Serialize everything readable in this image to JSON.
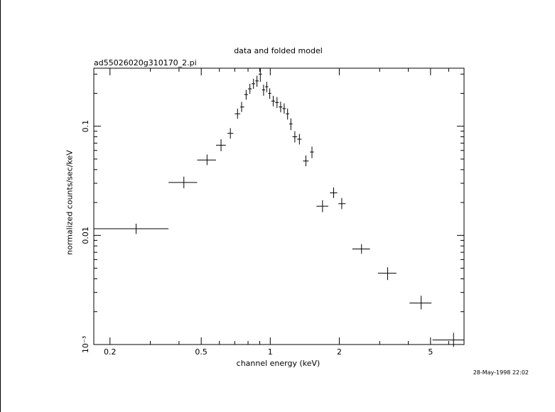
{
  "window": {
    "left_border": true
  },
  "chart_data": {
    "type": "scatter",
    "title": "data and folded model",
    "subtitle": "ad55026020g310170_2.pi",
    "xlabel": "channel energy (keV)",
    "ylabel": "normalized counts/sec/keV",
    "xscale": "log",
    "yscale": "log",
    "xlim": [
      0.17,
      7.0
    ],
    "ylim": [
      0.001,
      0.34
    ],
    "x_ticks": [
      {
        "value": 0.2,
        "label": "0.2"
      },
      {
        "value": 0.5,
        "label": "0.5"
      },
      {
        "value": 1,
        "label": "1"
      },
      {
        "value": 2,
        "label": "2"
      },
      {
        "value": 5,
        "label": "5"
      }
    ],
    "y_ticks": [
      {
        "value": 0.1,
        "label": "0.1"
      },
      {
        "value": 0.01,
        "label": "0.01"
      },
      {
        "value": 0.001,
        "label": "10⁻³"
      }
    ],
    "grid": false,
    "legend": "none",
    "points": [
      {
        "x": 0.26,
        "xlo": 0.17,
        "xhi": 0.36,
        "y": 0.0115,
        "ylo": 0.0103,
        "yhi": 0.0128
      },
      {
        "x": 0.42,
        "xlo": 0.36,
        "xhi": 0.48,
        "y": 0.0305,
        "ylo": 0.027,
        "yhi": 0.0345
      },
      {
        "x": 0.53,
        "xlo": 0.48,
        "xhi": 0.58,
        "y": 0.049,
        "ylo": 0.044,
        "yhi": 0.055
      },
      {
        "x": 0.61,
        "xlo": 0.58,
        "xhi": 0.64,
        "y": 0.067,
        "ylo": 0.059,
        "yhi": 0.076
      },
      {
        "x": 0.67,
        "xlo": 0.65,
        "xhi": 0.69,
        "y": 0.086,
        "ylo": 0.077,
        "yhi": 0.096
      },
      {
        "x": 0.72,
        "xlo": 0.7,
        "xhi": 0.74,
        "y": 0.13,
        "ylo": 0.117,
        "yhi": 0.145
      },
      {
        "x": 0.75,
        "xlo": 0.74,
        "xhi": 0.77,
        "y": 0.15,
        "ylo": 0.135,
        "yhi": 0.167
      },
      {
        "x": 0.785,
        "xlo": 0.77,
        "xhi": 0.8,
        "y": 0.195,
        "ylo": 0.175,
        "yhi": 0.215
      },
      {
        "x": 0.815,
        "xlo": 0.8,
        "xhi": 0.83,
        "y": 0.22,
        "ylo": 0.198,
        "yhi": 0.245
      },
      {
        "x": 0.845,
        "xlo": 0.83,
        "xhi": 0.86,
        "y": 0.245,
        "ylo": 0.22,
        "yhi": 0.272
      },
      {
        "x": 0.875,
        "xlo": 0.86,
        "xhi": 0.89,
        "y": 0.26,
        "ylo": 0.23,
        "yhi": 0.29
      },
      {
        "x": 0.905,
        "xlo": 0.89,
        "xhi": 0.92,
        "y": 0.3,
        "ylo": 0.255,
        "yhi": 0.34
      },
      {
        "x": 0.935,
        "xlo": 0.92,
        "xhi": 0.95,
        "y": 0.215,
        "ylo": 0.19,
        "yhi": 0.24
      },
      {
        "x": 0.965,
        "xlo": 0.95,
        "xhi": 0.98,
        "y": 0.23,
        "ylo": 0.205,
        "yhi": 0.255
      },
      {
        "x": 0.995,
        "xlo": 0.98,
        "xhi": 1.01,
        "y": 0.2,
        "ylo": 0.178,
        "yhi": 0.222
      },
      {
        "x": 1.03,
        "xlo": 1.01,
        "xhi": 1.05,
        "y": 0.17,
        "ylo": 0.152,
        "yhi": 0.19
      },
      {
        "x": 1.07,
        "xlo": 1.05,
        "xhi": 1.09,
        "y": 0.165,
        "ylo": 0.147,
        "yhi": 0.185
      },
      {
        "x": 1.11,
        "xlo": 1.09,
        "xhi": 1.13,
        "y": 0.15,
        "ylo": 0.134,
        "yhi": 0.168
      },
      {
        "x": 1.15,
        "xlo": 1.13,
        "xhi": 1.17,
        "y": 0.145,
        "ylo": 0.13,
        "yhi": 0.162
      },
      {
        "x": 1.19,
        "xlo": 1.17,
        "xhi": 1.21,
        "y": 0.13,
        "ylo": 0.115,
        "yhi": 0.145
      },
      {
        "x": 1.23,
        "xlo": 1.21,
        "xhi": 1.25,
        "y": 0.105,
        "ylo": 0.092,
        "yhi": 0.118
      },
      {
        "x": 1.28,
        "xlo": 1.25,
        "xhi": 1.31,
        "y": 0.08,
        "ylo": 0.071,
        "yhi": 0.09
      },
      {
        "x": 1.34,
        "xlo": 1.31,
        "xhi": 1.37,
        "y": 0.076,
        "ylo": 0.068,
        "yhi": 0.085
      },
      {
        "x": 1.43,
        "xlo": 1.39,
        "xhi": 1.47,
        "y": 0.048,
        "ylo": 0.043,
        "yhi": 0.054
      },
      {
        "x": 1.52,
        "xlo": 1.49,
        "xhi": 1.55,
        "y": 0.058,
        "ylo": 0.051,
        "yhi": 0.065
      },
      {
        "x": 1.69,
        "xlo": 1.59,
        "xhi": 1.79,
        "y": 0.0185,
        "ylo": 0.0163,
        "yhi": 0.021
      },
      {
        "x": 1.89,
        "xlo": 1.82,
        "xhi": 1.96,
        "y": 0.0245,
        "ylo": 0.022,
        "yhi": 0.0275
      },
      {
        "x": 2.05,
        "xlo": 1.98,
        "xhi": 2.13,
        "y": 0.0195,
        "ylo": 0.0174,
        "yhi": 0.022
      },
      {
        "x": 2.5,
        "xlo": 2.28,
        "xhi": 2.72,
        "y": 0.0075,
        "ylo": 0.0068,
        "yhi": 0.0083
      },
      {
        "x": 3.25,
        "xlo": 2.95,
        "xhi": 3.55,
        "y": 0.0045,
        "ylo": 0.0039,
        "yhi": 0.0051
      },
      {
        "x": 4.55,
        "xlo": 4.05,
        "xhi": 5.05,
        "y": 0.0024,
        "ylo": 0.0021,
        "yhi": 0.0028
      },
      {
        "x": 6.3,
        "xlo": 5.1,
        "xhi": 7.0,
        "y": 0.0011,
        "ylo": 0.00095,
        "yhi": 0.00128
      }
    ]
  },
  "footer": {
    "timestamp": "28-May-1998 22:02"
  }
}
